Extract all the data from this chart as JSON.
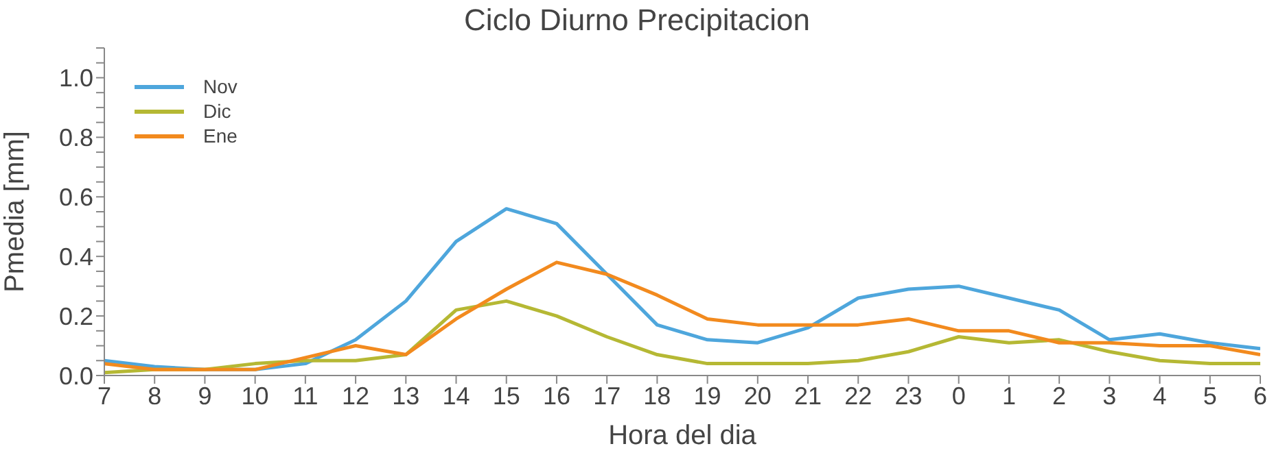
{
  "chart_data": {
    "type": "line",
    "title": "Ciclo Diurno Precipitacion",
    "xlabel": "Hora del dia",
    "ylabel": "Pmedia [mm]",
    "categories": [
      "7",
      "8",
      "9",
      "10",
      "11",
      "12",
      "13",
      "14",
      "15",
      "16",
      "17",
      "18",
      "19",
      "20",
      "21",
      "22",
      "23",
      "0",
      "1",
      "2",
      "3",
      "4",
      "5",
      "6"
    ],
    "series": [
      {
        "name": "Nov",
        "color": "#4ea6dc",
        "values": [
          0.05,
          0.03,
          0.02,
          0.02,
          0.04,
          0.12,
          0.25,
          0.45,
          0.56,
          0.51,
          0.34,
          0.17,
          0.12,
          0.11,
          0.16,
          0.26,
          0.29,
          0.3,
          0.26,
          0.22,
          0.12,
          0.14,
          0.11,
          0.09
        ]
      },
      {
        "name": "Dic",
        "color": "#b5b834",
        "values": [
          0.01,
          0.02,
          0.02,
          0.04,
          0.05,
          0.05,
          0.07,
          0.22,
          0.25,
          0.2,
          0.13,
          0.07,
          0.04,
          0.04,
          0.04,
          0.05,
          0.08,
          0.13,
          0.11,
          0.12,
          0.08,
          0.05,
          0.04,
          0.04
        ]
      },
      {
        "name": "Ene",
        "color": "#f28a1e",
        "values": [
          0.04,
          0.02,
          0.02,
          0.02,
          0.06,
          0.1,
          0.07,
          0.19,
          0.29,
          0.38,
          0.34,
          0.27,
          0.19,
          0.17,
          0.17,
          0.17,
          0.19,
          0.15,
          0.15,
          0.11,
          0.11,
          0.1,
          0.1,
          0.07
        ]
      }
    ],
    "ylim": [
      0,
      1.1
    ],
    "yticks": [
      {
        "value": 0,
        "label": "0.0"
      },
      {
        "value": 0.05,
        "label": null
      },
      {
        "value": 0.1,
        "label": null
      },
      {
        "value": 0.15,
        "label": null
      },
      {
        "value": 0.2,
        "label": "0.2"
      },
      {
        "value": 0.25,
        "label": null
      },
      {
        "value": 0.3,
        "label": null
      },
      {
        "value": 0.35,
        "label": null
      },
      {
        "value": 0.4,
        "label": "0.4"
      },
      {
        "value": 0.45,
        "label": null
      },
      {
        "value": 0.5,
        "label": null
      },
      {
        "value": 0.55,
        "label": null
      },
      {
        "value": 0.6,
        "label": "0.6"
      },
      {
        "value": 0.65,
        "label": null
      },
      {
        "value": 0.7,
        "label": null
      },
      {
        "value": 0.75,
        "label": null
      },
      {
        "value": 0.8,
        "label": "0.8"
      },
      {
        "value": 0.85,
        "label": null
      },
      {
        "value": 0.9,
        "label": null
      },
      {
        "value": 0.95,
        "label": null
      },
      {
        "value": 1.0,
        "label": "1.0"
      },
      {
        "value": 1.05,
        "label": null
      },
      {
        "value": 1.1,
        "label": null
      }
    ],
    "grid": false,
    "legend": "top left",
    "marker": "none",
    "line_style": "solid"
  }
}
